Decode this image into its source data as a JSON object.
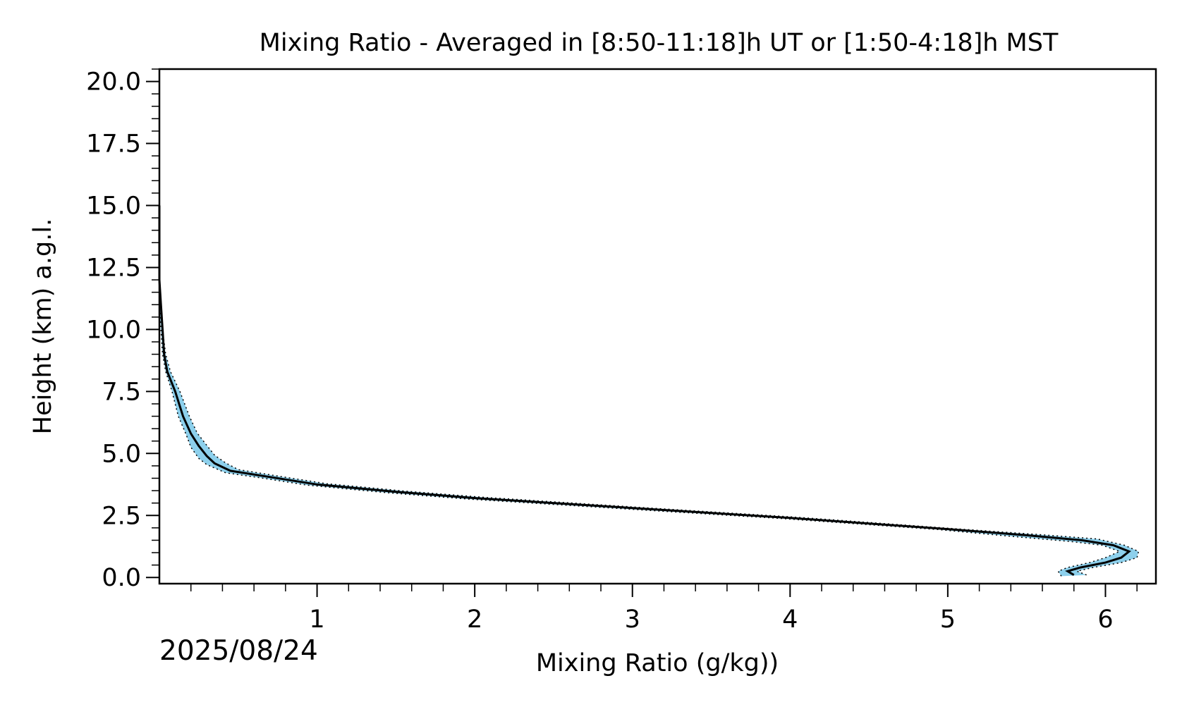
{
  "chart_data": {
    "type": "line",
    "title": "Mixing Ratio - Averaged in [8:50-11:18]h UT or [1:50-4:18]h MST",
    "xlabel": "Mixing Ratio (g/kg))",
    "ylabel": "Height (km) a.g.l.",
    "date_label": "2025/08/24",
    "xlim": [
      0.0,
      6.32
    ],
    "ylim": [
      -0.25,
      20.5
    ],
    "x_ticks": [
      1,
      2,
      3,
      4,
      5,
      6
    ],
    "x_tick_labels": [
      "1",
      "2",
      "3",
      "4",
      "5",
      "6"
    ],
    "y_ticks": [
      0,
      2.5,
      5,
      7.5,
      10,
      12.5,
      15,
      17.5,
      20
    ],
    "y_tick_labels": [
      "0.0",
      "2.5",
      "5.0",
      "7.5",
      "10.0",
      "12.5",
      "15.0",
      "17.5",
      "20.0"
    ],
    "grid": false,
    "colors": {
      "mean_line": "#000000",
      "uncertainty_band": "#87ceeb"
    },
    "series": [
      {
        "role": "mean",
        "points": [
          [
            5.8,
            0.1
          ],
          [
            5.76,
            0.25
          ],
          [
            5.84,
            0.4
          ],
          [
            6.0,
            0.6
          ],
          [
            6.1,
            0.8
          ],
          [
            6.15,
            1.05
          ],
          [
            6.05,
            1.3
          ],
          [
            5.85,
            1.5
          ],
          [
            5.5,
            1.7
          ],
          [
            5.0,
            1.95
          ],
          [
            4.0,
            2.4
          ],
          [
            3.0,
            2.8
          ],
          [
            2.0,
            3.2
          ],
          [
            1.5,
            3.45
          ],
          [
            1.0,
            3.75
          ],
          [
            0.7,
            4.05
          ],
          [
            0.45,
            4.3
          ],
          [
            0.35,
            4.6
          ],
          [
            0.3,
            4.9
          ],
          [
            0.25,
            5.3
          ],
          [
            0.2,
            5.8
          ],
          [
            0.15,
            6.5
          ],
          [
            0.1,
            7.5
          ],
          [
            0.05,
            8.3
          ],
          [
            0.03,
            9.0
          ],
          [
            0.02,
            10.0
          ],
          [
            0.01,
            11.0
          ],
          [
            0.0,
            12.0
          ],
          [
            0.0,
            15.0
          ]
        ]
      },
      {
        "role": "uncertainty-upper",
        "points": [
          [
            5.88,
            0.1
          ],
          [
            5.82,
            0.25
          ],
          [
            5.92,
            0.4
          ],
          [
            6.1,
            0.6
          ],
          [
            6.2,
            0.8
          ],
          [
            6.21,
            1.05
          ],
          [
            6.12,
            1.3
          ],
          [
            5.95,
            1.55
          ],
          [
            5.6,
            1.72
          ],
          [
            5.06,
            1.96
          ],
          [
            4.06,
            2.42
          ],
          [
            3.06,
            2.82
          ],
          [
            2.06,
            3.23
          ],
          [
            1.56,
            3.48
          ],
          [
            1.06,
            3.78
          ],
          [
            0.76,
            4.08
          ],
          [
            0.5,
            4.35
          ],
          [
            0.42,
            4.62
          ],
          [
            0.35,
            4.93
          ],
          [
            0.3,
            5.33
          ],
          [
            0.24,
            5.82
          ],
          [
            0.19,
            6.5
          ],
          [
            0.13,
            7.5
          ],
          [
            0.07,
            8.3
          ],
          [
            0.04,
            9.0
          ],
          [
            0.02,
            10.0
          ],
          [
            0.01,
            11.0
          ],
          [
            0.0,
            12.0
          ],
          [
            0.0,
            15.0
          ]
        ]
      },
      {
        "role": "uncertainty-lower",
        "points": [
          [
            5.72,
            0.05
          ],
          [
            5.7,
            0.25
          ],
          [
            5.76,
            0.4
          ],
          [
            5.9,
            0.6
          ],
          [
            6.0,
            0.8
          ],
          [
            6.09,
            1.05
          ],
          [
            5.98,
            1.3
          ],
          [
            5.78,
            1.45
          ],
          [
            5.4,
            1.66
          ],
          [
            4.94,
            1.93
          ],
          [
            3.94,
            2.38
          ],
          [
            2.94,
            2.77
          ],
          [
            1.94,
            3.17
          ],
          [
            1.44,
            3.42
          ],
          [
            0.94,
            3.72
          ],
          [
            0.64,
            4.02
          ],
          [
            0.42,
            4.22
          ],
          [
            0.3,
            4.55
          ],
          [
            0.25,
            4.8
          ],
          [
            0.2,
            5.25
          ],
          [
            0.17,
            5.76
          ],
          [
            0.12,
            6.5
          ],
          [
            0.08,
            7.5
          ],
          [
            0.04,
            8.3
          ],
          [
            0.02,
            9.0
          ],
          [
            0.01,
            10.0
          ],
          [
            0.0,
            11.0
          ],
          [
            0.0,
            12.0
          ],
          [
            0.0,
            15.0
          ]
        ]
      }
    ]
  }
}
